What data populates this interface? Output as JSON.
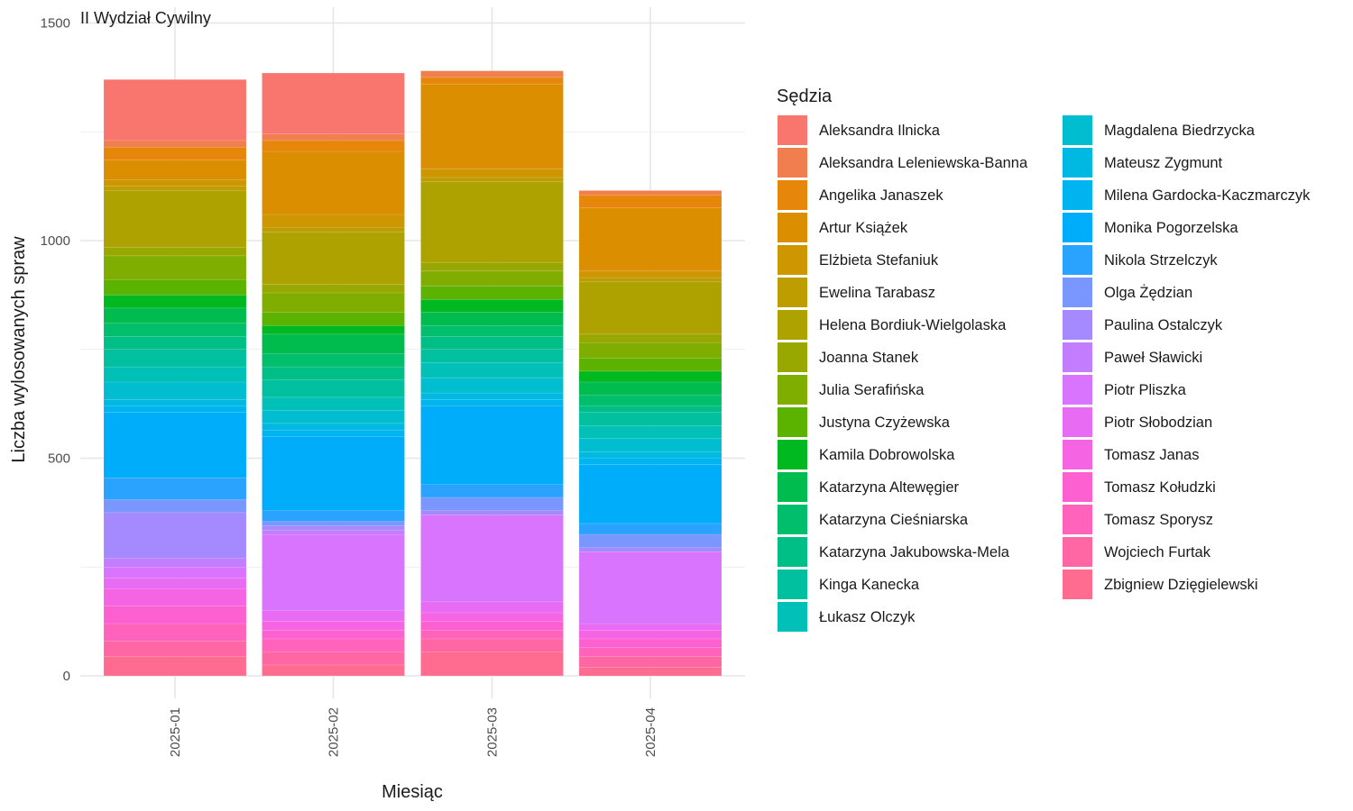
{
  "chart_data": {
    "type": "bar",
    "stacked": true,
    "title": "II Wydział Cywilny",
    "xlabel": "Miesiąc",
    "ylabel": "Liczba wylosowanych spraw",
    "legend_title": "Sędzia",
    "legend_position": "right",
    "grid": true,
    "ylim": [
      0,
      1500
    ],
    "yticks": [
      0,
      500,
      1000,
      1500
    ],
    "categories": [
      "2025-01",
      "2025-02",
      "2025-03",
      "2025-04"
    ],
    "series": [
      {
        "name": "Aleksandra Ilnicka",
        "color": "#F8766D",
        "values": [
          140,
          140,
          0,
          0
        ]
      },
      {
        "name": "Aleksandra Leleniewska-Banna",
        "color": "#F07E4E",
        "values": [
          15,
          15,
          15,
          10
        ]
      },
      {
        "name": "Angelika Janaszek",
        "color": "#E6860B",
        "values": [
          30,
          25,
          15,
          30
        ]
      },
      {
        "name": "Artur Książek",
        "color": "#DB8E00",
        "values": [
          45,
          145,
          195,
          145
        ]
      },
      {
        "name": "Elżbieta Stefaniuk",
        "color": "#CE9600",
        "values": [
          15,
          30,
          20,
          15
        ]
      },
      {
        "name": "Ewelina Tarabasz",
        "color": "#BE9D00",
        "values": [
          10,
          10,
          10,
          10
        ]
      },
      {
        "name": "Helena Bordiuk-Wielgolaska",
        "color": "#AEA200",
        "values": [
          130,
          120,
          185,
          120
        ]
      },
      {
        "name": "Joanna Stanek",
        "color": "#99A800",
        "values": [
          20,
          20,
          20,
          20
        ]
      },
      {
        "name": "Julia Serafińska",
        "color": "#7FAE00",
        "values": [
          55,
          45,
          35,
          35
        ]
      },
      {
        "name": "Justyna Czyżewska",
        "color": "#5BB300",
        "values": [
          35,
          30,
          30,
          30
        ]
      },
      {
        "name": "Kamila Dobrowolska",
        "color": "#00B81F",
        "values": [
          30,
          20,
          30,
          25
        ]
      },
      {
        "name": "Katarzyna Altewęgier",
        "color": "#00BB4E",
        "values": [
          35,
          45,
          30,
          30
        ]
      },
      {
        "name": "Katarzyna Cieśniarska",
        "color": "#00BE6C",
        "values": [
          30,
          30,
          25,
          25
        ]
      },
      {
        "name": "Katarzyna Jakubowska-Mela",
        "color": "#00BF86",
        "values": [
          30,
          30,
          30,
          15
        ]
      },
      {
        "name": "Kinga Kanecka",
        "color": "#00C0A0",
        "values": [
          40,
          40,
          30,
          30
        ]
      },
      {
        "name": "Łukasz Olczyk",
        "color": "#00C0B8",
        "values": [
          35,
          30,
          35,
          30
        ]
      },
      {
        "name": "Magdalena Biedrzycka",
        "color": "#00BDCF",
        "values": [
          40,
          30,
          35,
          30
        ]
      },
      {
        "name": "Mateusz Zygmunt",
        "color": "#00B9E3",
        "values": [
          15,
          15,
          15,
          15
        ]
      },
      {
        "name": "Milena Gardocka-Kaczmarczyk",
        "color": "#00B4F0",
        "values": [
          15,
          15,
          15,
          15
        ]
      },
      {
        "name": "Monika Pogorzelska",
        "color": "#00ADFA",
        "values": [
          150,
          170,
          180,
          135
        ]
      },
      {
        "name": "Nikola Strzelczyk",
        "color": "#29A3FF",
        "values": [
          50,
          25,
          30,
          25
        ]
      },
      {
        "name": "Olga Żędzian",
        "color": "#7A97FF",
        "values": [
          30,
          10,
          30,
          30
        ]
      },
      {
        "name": "Paulina Ostalczyk",
        "color": "#A58AFF",
        "values": [
          105,
          10,
          10,
          10
        ]
      },
      {
        "name": "Paweł Sławicki",
        "color": "#C37DFF",
        "values": [
          20,
          10,
          0,
          0
        ]
      },
      {
        "name": "Piotr Pliszka",
        "color": "#D874FD",
        "values": [
          25,
          175,
          200,
          165
        ]
      },
      {
        "name": "Piotr Słobodzian",
        "color": "#E86BF3",
        "values": [
          25,
          25,
          25,
          15
        ]
      },
      {
        "name": "Tomasz Janas",
        "color": "#F564E3",
        "values": [
          40,
          20,
          20,
          20
        ]
      },
      {
        "name": "Tomasz Kołudzki",
        "color": "#FD61D1",
        "values": [
          40,
          20,
          20,
          20
        ]
      },
      {
        "name": "Tomasz Sporysz",
        "color": "#FF63BC",
        "values": [
          40,
          30,
          20,
          20
        ]
      },
      {
        "name": "Wojciech Furtak",
        "color": "#FF67A4",
        "values": [
          35,
          30,
          30,
          25
        ]
      },
      {
        "name": "Zbigniew Dzięgielewski",
        "color": "#FF6C90",
        "values": [
          45,
          25,
          55,
          20
        ]
      }
    ]
  }
}
